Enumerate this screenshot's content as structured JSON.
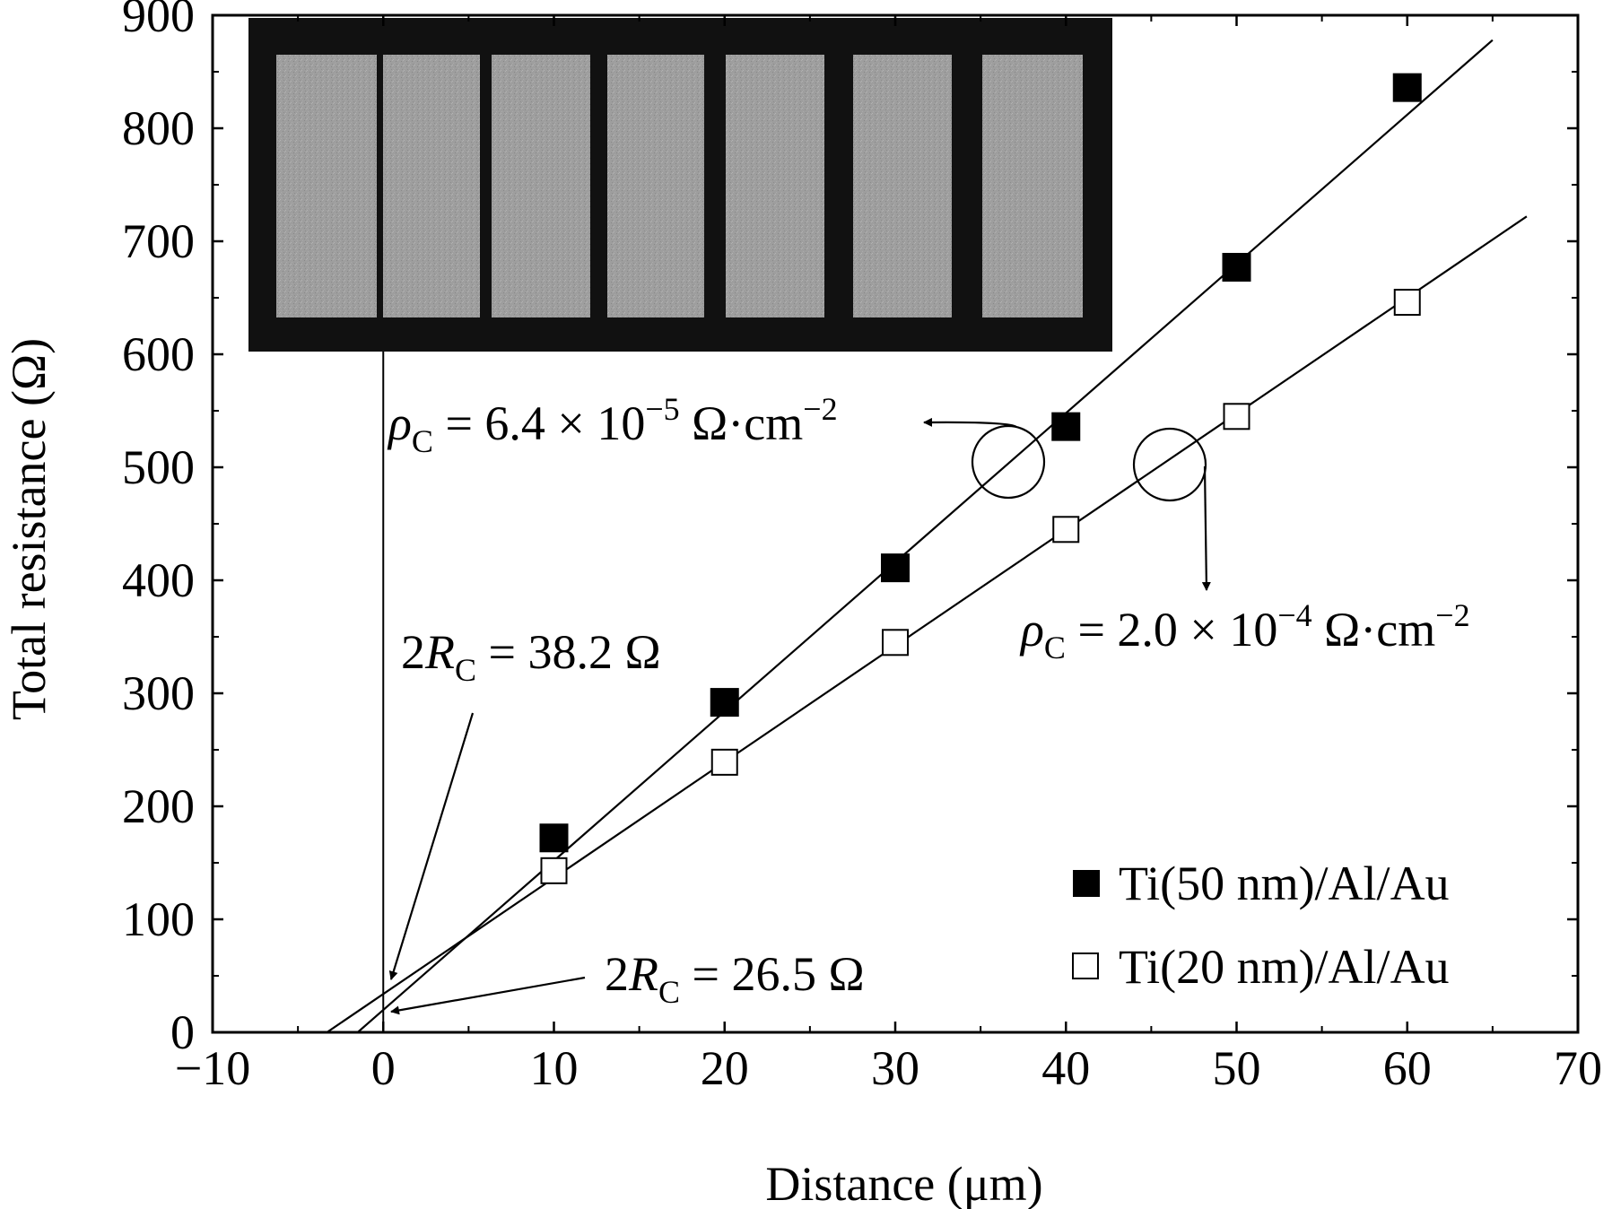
{
  "chart_data": {
    "type": "scatter",
    "title": "",
    "xlabel": "Distance (μm)",
    "ylabel": "Total resistance (Ω)",
    "xlim": [
      -10,
      70
    ],
    "ylim": [
      0,
      900
    ],
    "xticks": [
      -10,
      0,
      10,
      20,
      30,
      40,
      50,
      60,
      70
    ],
    "yticks": [
      0,
      100,
      200,
      300,
      400,
      500,
      600,
      700,
      800,
      900
    ],
    "xtick_labels": [
      "−10",
      "0",
      "10",
      "20",
      "30",
      "40",
      "50",
      "60",
      "70"
    ],
    "ytick_labels": [
      "0",
      "100",
      "200",
      "300",
      "400",
      "500",
      "600",
      "700",
      "800",
      "900"
    ],
    "grid": false,
    "legend_position": "bottom-right",
    "series": [
      {
        "name": "Ti(50 nm)/Al/Au",
        "marker": "filled-square",
        "x": [
          10,
          20,
          30,
          40,
          50,
          60
        ],
        "y": [
          172,
          292,
          411,
          536,
          677,
          836
        ],
        "fit_line": {
          "x": [
            -1.5,
            65
          ],
          "y": [
            0,
            878
          ]
        }
      },
      {
        "name": "Ti(20 nm)/Al/Au",
        "marker": "open-square",
        "x": [
          10,
          20,
          30,
          40,
          50,
          60
        ],
        "y": [
          143,
          239,
          345,
          445,
          545,
          646
        ],
        "fit_line": {
          "x": [
            -3.3,
            67
          ],
          "y": [
            0,
            722
          ]
        }
      }
    ],
    "annotations": {
      "rho_top": {
        "symbol": "ρ",
        "sub": "C",
        "rest": " = 6.4 × 10",
        "exp": "−5",
        "unit": " Ω·cm",
        "unit_exp": "−2"
      },
      "rho_bottom": {
        "symbol": "ρ",
        "sub": "C",
        "rest": " = 2.0 × 10",
        "exp": "−4",
        "unit": " Ω·cm",
        "unit_exp": "−2"
      },
      "rc_top": {
        "prefix": "2",
        "var": "R",
        "sub": "C",
        "rest": " = 38.2 Ω"
      },
      "rc_bottom": {
        "prefix": "2",
        "var": "R",
        "sub": "C",
        "rest": " = 26.5 Ω"
      }
    },
    "inset": {
      "type": "micrograph",
      "pad_count": 7
    },
    "colors": {
      "foreground": "#000000",
      "background": "#ffffff",
      "pad_gray": "#9a9a9a",
      "inset_frame": "#111111"
    }
  }
}
